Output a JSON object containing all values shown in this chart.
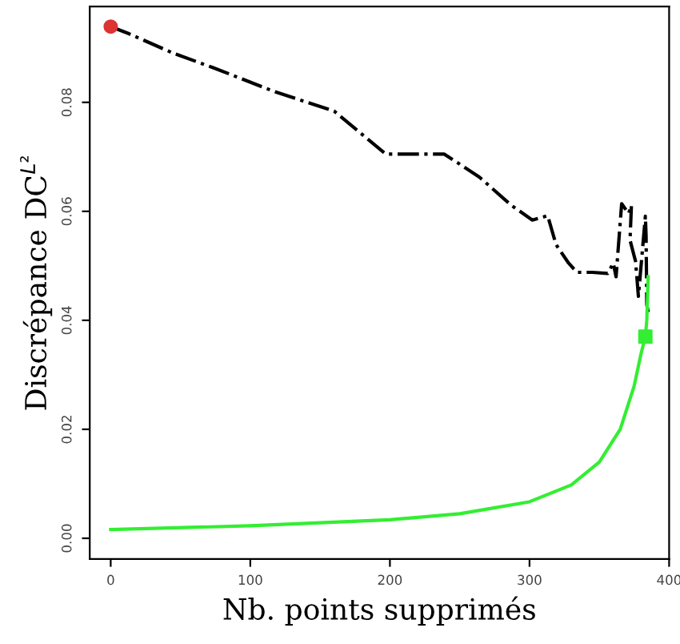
{
  "chart_data": {
    "type": "line",
    "xlabel": "Nb. points supprimés",
    "ylabel": "Discrépance DC$^{L²}$",
    "xlim": [
      -15,
      400
    ],
    "ylim": [
      -0.0038,
      0.0976
    ],
    "xticks": [
      0,
      100,
      200,
      300,
      400
    ],
    "yticks": [
      {
        "value": 0,
        "label": "0.00"
      },
      {
        "value": 0.02,
        "label": "0.02"
      },
      {
        "value": 0.04,
        "label": "0.04"
      },
      {
        "value": 0.06,
        "label": "0.06"
      },
      {
        "value": 0.08,
        "label": "0.08"
      }
    ],
    "grid": false,
    "legend": false,
    "series": [
      {
        "color": "#000000",
        "line_style": "dashed",
        "x": [
          0,
          13,
          45,
          73,
          117,
          160,
          197,
          239,
          264,
          287,
          302,
          313,
          319,
          328,
          334,
          345,
          356,
          360,
          362,
          366,
          371,
          373,
          372,
          376,
          378,
          383,
          383.5,
          384,
          385
        ],
        "values": [
          0.0939,
          0.0926,
          0.089,
          0.0864,
          0.082,
          0.0784,
          0.0705,
          0.0705,
          0.0663,
          0.0611,
          0.0584,
          0.0592,
          0.0539,
          0.0505,
          0.0488,
          0.0488,
          0.0486,
          0.0505,
          0.048,
          0.0614,
          0.0596,
          0.0611,
          0.0547,
          0.0508,
          0.0444,
          0.0591,
          0.0554,
          0.0429,
          0.0415
        ]
      },
      {
        "color": "#33ee33",
        "line_style": "solid",
        "x": [
          0,
          100,
          200,
          250,
          300,
          330,
          350,
          365,
          375,
          380,
          383,
          384,
          385
        ],
        "values": [
          0.0016,
          0.0023,
          0.0034,
          0.0045,
          0.0067,
          0.0098,
          0.014,
          0.02,
          0.028,
          0.034,
          0.037,
          0.04,
          0.048
        ]
      },
      {
        "type": "scatter",
        "color": "#dd3333",
        "marker": "circle",
        "x": [
          0
        ],
        "values": [
          0.0939
        ]
      },
      {
        "type": "scatter",
        "color": "#33ee33",
        "marker": "square",
        "x": [
          383
        ],
        "values": [
          0.037
        ]
      }
    ]
  }
}
